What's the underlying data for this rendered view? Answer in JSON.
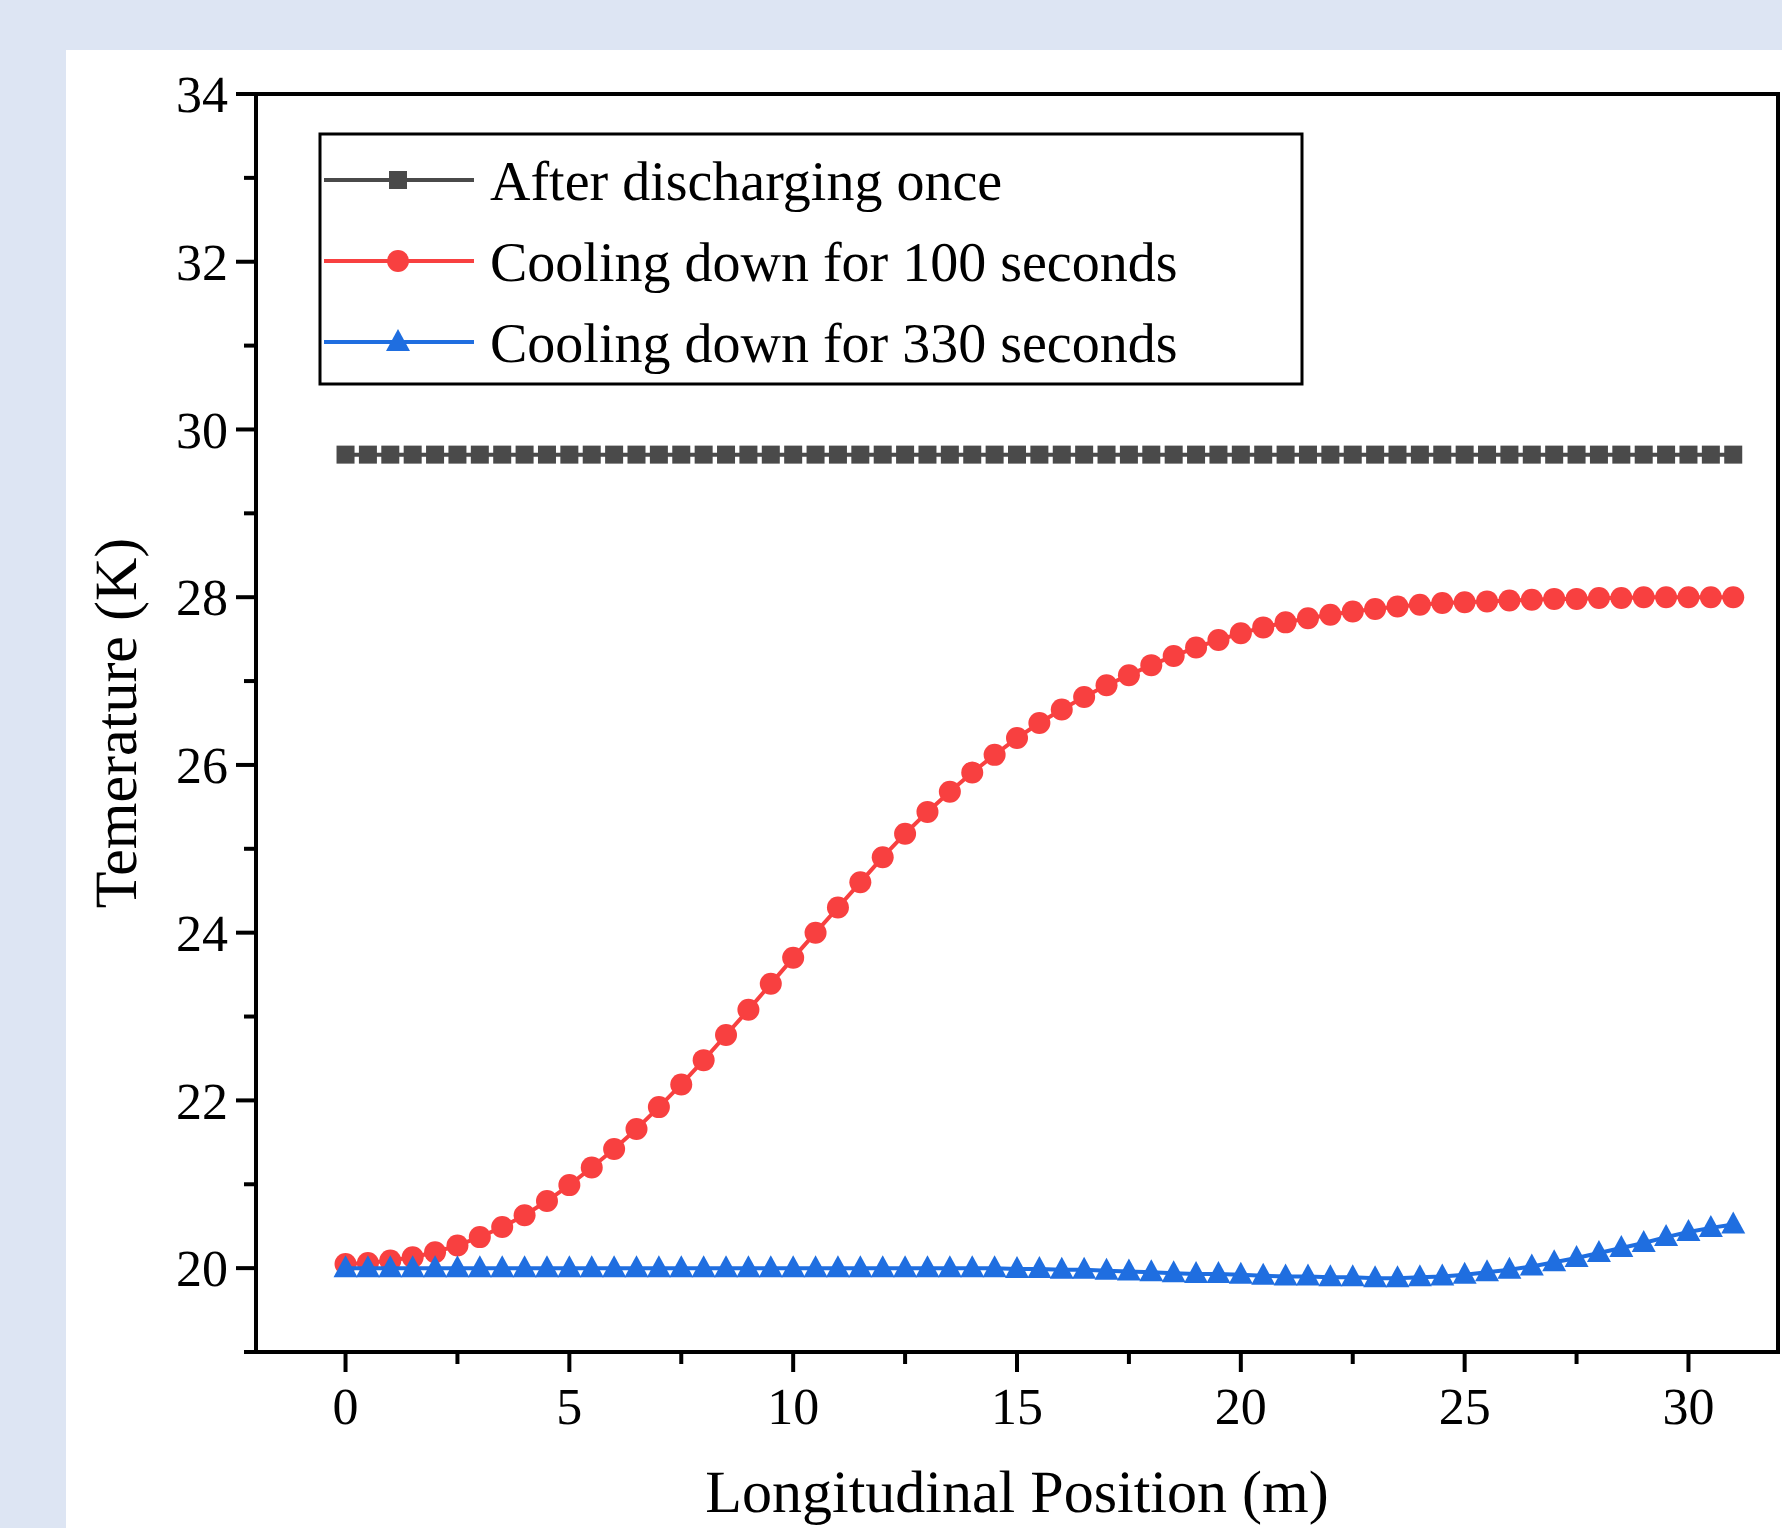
{
  "chart_data": {
    "type": "line",
    "xlabel": "Longitudinal Position (m)",
    "ylabel": "Temerature (K)",
    "x": [
      0,
      0.5,
      1,
      1.5,
      2,
      2.5,
      3,
      3.5,
      4,
      4.5,
      5,
      5.5,
      6,
      6.5,
      7,
      7.5,
      8,
      8.5,
      9,
      9.5,
      10,
      10.5,
      11,
      11.5,
      12,
      12.5,
      13,
      13.5,
      14,
      14.5,
      15,
      15.5,
      16,
      16.5,
      17,
      17.5,
      18,
      18.5,
      19,
      19.5,
      20,
      20.5,
      21,
      21.5,
      22,
      22.5,
      23,
      23.5,
      24,
      24.5,
      25,
      25.5,
      26,
      26.5,
      27,
      27.5,
      28,
      28.5,
      29,
      29.5,
      30,
      30.5,
      31
    ],
    "series": [
      {
        "name": "After discharging once",
        "color": "#4a4a4a",
        "marker": "square",
        "values": [
          29.7,
          29.7,
          29.7,
          29.7,
          29.7,
          29.7,
          29.7,
          29.7,
          29.7,
          29.7,
          29.7,
          29.7,
          29.7,
          29.7,
          29.7,
          29.7,
          29.7,
          29.7,
          29.7,
          29.7,
          29.7,
          29.7,
          29.7,
          29.7,
          29.7,
          29.7,
          29.7,
          29.7,
          29.7,
          29.7,
          29.7,
          29.7,
          29.7,
          29.7,
          29.7,
          29.7,
          29.7,
          29.7,
          29.7,
          29.7,
          29.7,
          29.7,
          29.7,
          29.7,
          29.7,
          29.7,
          29.7,
          29.7,
          29.7,
          29.7,
          29.7,
          29.7,
          29.7,
          29.7,
          29.7,
          29.7,
          29.7,
          29.7,
          29.7,
          29.7,
          29.7,
          29.7,
          29.7
        ]
      },
      {
        "name": "Cooling down for 100 seconds",
        "color": "#f84040",
        "marker": "circle",
        "values": [
          20.05,
          20.06,
          20.09,
          20.13,
          20.19,
          20.27,
          20.37,
          20.49,
          20.63,
          20.8,
          20.99,
          21.2,
          21.42,
          21.66,
          21.92,
          22.19,
          22.48,
          22.78,
          23.08,
          23.39,
          23.7,
          24.0,
          24.3,
          24.6,
          24.9,
          25.18,
          25.44,
          25.68,
          25.91,
          26.12,
          26.32,
          26.5,
          26.66,
          26.81,
          26.95,
          27.07,
          27.19,
          27.3,
          27.4,
          27.49,
          27.57,
          27.64,
          27.7,
          27.75,
          27.79,
          27.83,
          27.86,
          27.89,
          27.91,
          27.93,
          27.94,
          27.95,
          27.96,
          27.97,
          27.98,
          27.98,
          27.99,
          27.99,
          28.0,
          28.0,
          28.0,
          28.0,
          28.0
        ]
      },
      {
        "name": "Cooling down for 330 seconds",
        "color": "#1f6ee0",
        "marker": "triangle",
        "values": [
          20.0,
          20.0,
          20.0,
          20.0,
          20.0,
          20.0,
          20.0,
          20.0,
          20.0,
          20.0,
          20.0,
          20.0,
          20.0,
          20.0,
          20.0,
          20.0,
          20.0,
          20.0,
          20.0,
          20.0,
          20.0,
          20.0,
          20.0,
          20.0,
          20.0,
          20.0,
          20.0,
          20.0,
          20.0,
          20.0,
          19.99,
          19.99,
          19.98,
          19.98,
          19.97,
          19.96,
          19.95,
          19.94,
          19.93,
          19.93,
          19.92,
          19.91,
          19.9,
          19.9,
          19.89,
          19.89,
          19.88,
          19.88,
          19.89,
          19.9,
          19.92,
          19.95,
          19.98,
          20.02,
          20.07,
          20.12,
          20.18,
          20.24,
          20.3,
          20.37,
          20.43,
          20.48,
          20.52
        ]
      }
    ],
    "xlim": [
      -2,
      32
    ],
    "ylim": [
      19,
      34
    ],
    "xticks": [
      0,
      {
        "value": 2.5,
        "label": null
      },
      5,
      {
        "value": 7.5,
        "label": null
      },
      10,
      {
        "value": 12.5,
        "label": null
      },
      15,
      {
        "value": 17.5,
        "label": null
      },
      20,
      {
        "value": 22.5,
        "label": null
      },
      25,
      {
        "value": 27.5,
        "label": null
      },
      30
    ],
    "yticks": [
      {
        "value": 19,
        "label": null
      },
      20,
      {
        "value": 21,
        "label": null
      },
      22,
      {
        "value": 23,
        "label": null
      },
      24,
      {
        "value": 25,
        "label": null
      },
      26,
      {
        "value": 27,
        "label": null
      },
      28,
      {
        "value": 29,
        "label": null
      },
      30,
      {
        "value": 31,
        "label": null
      },
      32,
      {
        "value": 33,
        "label": null
      },
      34
    ],
    "legend": "top left",
    "grid": false
  }
}
